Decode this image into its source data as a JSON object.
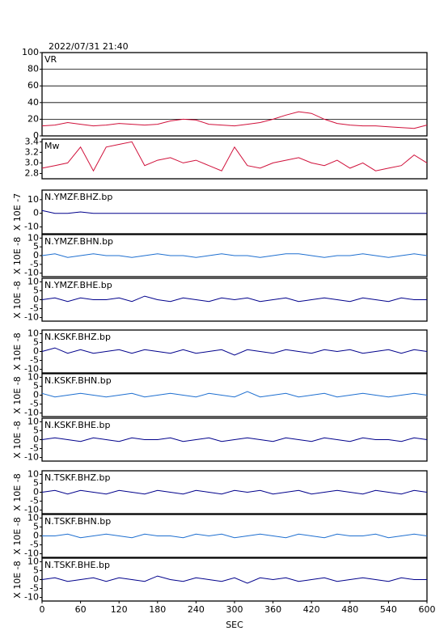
{
  "chart_data": {
    "type": "line",
    "title": "2022/07/31 21:40",
    "xlabel": "SEC",
    "x": [
      0,
      20,
      40,
      60,
      80,
      100,
      120,
      140,
      160,
      180,
      200,
      220,
      240,
      260,
      280,
      300,
      320,
      340,
      360,
      380,
      400,
      420,
      440,
      460,
      480,
      500,
      520,
      540,
      560,
      580,
      600
    ],
    "xlim": [
      0,
      600
    ],
    "xticks": [
      0,
      60,
      120,
      180,
      240,
      300,
      360,
      420,
      480,
      540,
      600
    ],
    "panels": [
      {
        "name": "VR",
        "color": "#d0103a",
        "grid": true,
        "ylim": [
          0,
          100
        ],
        "yticks": [
          0,
          20,
          40,
          60,
          80,
          100
        ],
        "values": [
          12,
          13,
          16,
          14,
          12,
          13,
          15,
          14,
          13,
          14,
          18,
          20,
          19,
          14,
          13,
          12,
          14,
          16,
          20,
          25,
          29,
          27,
          20,
          15,
          13,
          12,
          12,
          11,
          10,
          9,
          13
        ]
      },
      {
        "name": "Mw",
        "color": "#d0103a",
        "grid": false,
        "ylim": [
          2.7,
          3.45
        ],
        "yticks": [
          {
            "value": 2.8,
            "label": "2.8"
          },
          {
            "value": 3.0,
            "label": "3.0"
          },
          3.2,
          3.4
        ],
        "values": [
          2.9,
          2.95,
          3.0,
          3.3,
          2.85,
          3.3,
          3.35,
          3.4,
          2.95,
          3.05,
          3.1,
          3.0,
          3.05,
          2.95,
          2.85,
          3.3,
          2.95,
          2.9,
          3.0,
          3.05,
          3.1,
          3.0,
          2.95,
          3.05,
          2.9,
          3.0,
          2.85,
          2.9,
          2.95,
          3.15,
          3.0
        ]
      },
      {
        "name": "N.YMZF.BHZ.bp",
        "ylabel": "X 10E -7",
        "color": "#00008b",
        "grid": false,
        "ylim": [
          -15,
          17
        ],
        "yticks": [
          -10,
          0,
          10
        ],
        "values": [
          2,
          0,
          0,
          1,
          0,
          0,
          0,
          0,
          0,
          0,
          0,
          0,
          0,
          0,
          0,
          0,
          0,
          0,
          0,
          0,
          0,
          0,
          0,
          0,
          0,
          0,
          0,
          0,
          0,
          0,
          0
        ]
      },
      {
        "name": "N.YMZF.BHN.bp",
        "ylabel": "X 10E -8",
        "color": "#1e6fd0",
        "grid": false,
        "ylim": [
          -12,
          12
        ],
        "yticks": [
          -10,
          -5,
          0,
          5,
          10
        ],
        "values": [
          0,
          1,
          -1,
          0,
          1,
          0,
          0,
          -1,
          0,
          1,
          0,
          0,
          -1,
          0,
          1,
          0,
          0,
          -1,
          0,
          1,
          1,
          0,
          -1,
          0,
          0,
          1,
          0,
          -1,
          0,
          1,
          0
        ]
      },
      {
        "name": "N.YMZF.BHE.bp",
        "ylabel": "X 10E -8",
        "color": "#00008b",
        "grid": false,
        "ylim": [
          -12,
          12
        ],
        "yticks": [
          -10,
          -5,
          0,
          5,
          10
        ],
        "values": [
          0,
          1,
          -1,
          1,
          0,
          0,
          1,
          -1,
          2,
          0,
          -1,
          1,
          0,
          -1,
          1,
          0,
          1,
          -1,
          0,
          1,
          -1,
          0,
          1,
          0,
          -1,
          1,
          0,
          -1,
          1,
          0,
          0
        ]
      },
      {
        "name": "N.KSKF.BHZ.bp",
        "ylabel": "X 10E -8",
        "color": "#00008b",
        "grid": false,
        "ylim": [
          -12,
          12
        ],
        "yticks": [
          -10,
          -5,
          0,
          5,
          10
        ],
        "values": [
          0,
          2,
          -1,
          1,
          -1,
          0,
          1,
          -1,
          1,
          0,
          -1,
          1,
          -1,
          0,
          1,
          -2,
          1,
          0,
          -1,
          1,
          0,
          -1,
          1,
          0,
          1,
          -1,
          0,
          1,
          -1,
          1,
          0
        ]
      },
      {
        "name": "N.KSKF.BHN.bp",
        "ylabel": "X 10E -8",
        "color": "#1e6fd0",
        "grid": false,
        "ylim": [
          -12,
          12
        ],
        "yticks": [
          -10,
          -5,
          0,
          5,
          10
        ],
        "values": [
          1,
          -1,
          0,
          1,
          0,
          -1,
          0,
          1,
          -1,
          0,
          1,
          0,
          -1,
          1,
          0,
          -1,
          2,
          -1,
          0,
          1,
          -1,
          0,
          1,
          -1,
          0,
          1,
          0,
          -1,
          0,
          1,
          0
        ]
      },
      {
        "name": "N.KSKF.BHE.bp",
        "ylabel": "X 10E -8",
        "color": "#00008b",
        "grid": false,
        "ylim": [
          -12,
          12
        ],
        "yticks": [
          -10,
          -5,
          0,
          5,
          10
        ],
        "values": [
          0,
          1,
          0,
          -1,
          1,
          0,
          -1,
          1,
          0,
          0,
          1,
          -1,
          0,
          1,
          -1,
          0,
          1,
          0,
          -1,
          1,
          0,
          -1,
          1,
          0,
          -1,
          1,
          0,
          0,
          -1,
          1,
          0
        ]
      },
      {
        "name": "N.TSKF.BHZ.bp",
        "ylabel": "X 10E -8",
        "color": "#00008b",
        "grid": false,
        "ylim": [
          -12,
          12
        ],
        "yticks": [
          -10,
          -5,
          0,
          5,
          10
        ],
        "values": [
          0,
          1,
          -1,
          1,
          0,
          -1,
          1,
          0,
          -1,
          1,
          0,
          -1,
          1,
          0,
          -1,
          1,
          0,
          1,
          -1,
          0,
          1,
          -1,
          0,
          1,
          0,
          -1,
          1,
          0,
          -1,
          1,
          0
        ]
      },
      {
        "name": "N.TSKF.BHN.bp",
        "ylabel": "X 10E -8",
        "color": "#1e6fd0",
        "grid": false,
        "ylim": [
          -12,
          12
        ],
        "yticks": [
          -10,
          -5,
          0,
          5,
          10
        ],
        "values": [
          0,
          0,
          1,
          -1,
          0,
          1,
          0,
          -1,
          1,
          0,
          0,
          -1,
          1,
          0,
          1,
          -1,
          0,
          1,
          0,
          -1,
          1,
          0,
          -1,
          1,
          0,
          0,
          1,
          -1,
          0,
          1,
          0
        ]
      },
      {
        "name": "N.TSKF.BHE.bp",
        "ylabel": "X 10E -8",
        "color": "#00008b",
        "grid": false,
        "ylim": [
          -12,
          12
        ],
        "yticks": [
          -10,
          -5,
          0,
          5,
          10
        ],
        "values": [
          0,
          1,
          -1,
          0,
          1,
          -1,
          1,
          0,
          -1,
          2,
          0,
          -1,
          1,
          0,
          -1,
          1,
          -2,
          1,
          0,
          1,
          -1,
          0,
          1,
          -1,
          0,
          1,
          0,
          -1,
          1,
          0,
          0
        ]
      }
    ]
  }
}
